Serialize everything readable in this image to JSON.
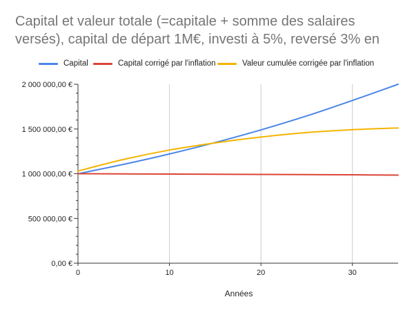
{
  "chart_data": {
    "type": "line",
    "title_lines": [
      "Capital et valeur totale (=capitale + somme des salaires",
      "versés), capital de départ 1M€, investi à 5%, reversé 3% en"
    ],
    "xlabel": "Années",
    "ylabel": "",
    "xlim": [
      0,
      35
    ],
    "ylim": [
      0,
      2000000
    ],
    "x_ticks": [
      0,
      10,
      20,
      30
    ],
    "x_tick_labels": [
      "0",
      "10",
      "20",
      "30"
    ],
    "y_ticks": [
      0,
      500000,
      1000000,
      1500000,
      2000000
    ],
    "y_tick_labels": [
      "0,00 €",
      "500 000,00 €",
      "1 000 000,00 €",
      "1 500 000,00 €",
      "2 000 000,00 €"
    ],
    "grid": "vertical",
    "legend_position": "top",
    "series": [
      {
        "name": "Capital",
        "color": "#4a86e8",
        "x": [
          0,
          5,
          10,
          15,
          20,
          25,
          30,
          35
        ],
        "y": [
          1000000,
          1105000,
          1221000,
          1349000,
          1490000,
          1646000,
          1819000,
          2000000
        ]
      },
      {
        "name": "Capital corrigé par l'inflation",
        "color": "#db4437",
        "x": [
          0,
          5,
          10,
          15,
          20,
          25,
          30,
          35
        ],
        "y": [
          1000000,
          998000,
          996000,
          994000,
          992000,
          990000,
          988000,
          985000
        ]
      },
      {
        "name": "Valeur cumulée corrigée par l'inflation",
        "color": "#f4b400",
        "x": [
          0,
          5,
          10,
          15,
          20,
          25,
          30,
          35
        ],
        "y": [
          1030000,
          1160000,
          1265000,
          1345000,
          1410000,
          1460000,
          1492000,
          1512000
        ]
      }
    ]
  }
}
